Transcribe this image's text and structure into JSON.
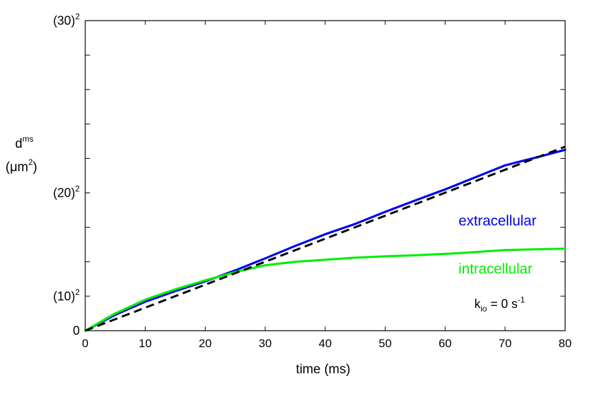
{
  "chart_data": {
    "type": "line",
    "xlabel": "time (ms)",
    "ylabel_main": "d",
    "ylabel_sup": "ms",
    "ylabel_unit_open": "(",
    "ylabel_unit": "μm",
    "ylabel_unit_sup": "2",
    "ylabel_unit_close": ")",
    "xlim": [
      0,
      80
    ],
    "ylim": [
      0,
      900
    ],
    "x_ticks": [
      0,
      10,
      20,
      30,
      40,
      50,
      60,
      70,
      80
    ],
    "x_tick_labels": [
      "0",
      "10",
      "20",
      "30",
      "40",
      "50",
      "60",
      "70",
      "80"
    ],
    "y_ticks": [
      0,
      100,
      200,
      300,
      400,
      500,
      600,
      700,
      800,
      900
    ],
    "y_tick_labels": [
      {
        "value": 0,
        "base": "0",
        "sup": ""
      },
      {
        "value": 100,
        "base": "(10)",
        "sup": "2"
      },
      {
        "value": 400,
        "base": "(20)",
        "sup": "2"
      },
      {
        "value": 900,
        "base": "(30)",
        "sup": "2"
      }
    ],
    "grid": false,
    "annotation": {
      "base": "k",
      "sub": "io",
      "mid": " = 0 s",
      "sup": "-1"
    },
    "series": [
      {
        "name": "",
        "color": "#000000",
        "style": "dashed",
        "x": [
          0,
          80
        ],
        "y": [
          0,
          534
        ]
      },
      {
        "name": "extracellular",
        "color": "#0000ee",
        "style": "solid",
        "x": [
          0,
          5,
          10,
          15,
          20,
          25,
          30,
          35,
          40,
          45,
          50,
          55,
          60,
          65,
          70,
          75,
          80
        ],
        "y": [
          0,
          46,
          84,
          115,
          143,
          175,
          210,
          246,
          280,
          310,
          345,
          378,
          410,
          445,
          480,
          502,
          525
        ]
      },
      {
        "name": "intracellular",
        "color": "#00ee00",
        "style": "solid",
        "x": [
          0,
          5,
          10,
          15,
          20,
          25,
          30,
          35,
          40,
          45,
          50,
          55,
          60,
          65,
          70,
          75,
          80
        ],
        "y": [
          0,
          50,
          90,
          120,
          146,
          170,
          190,
          200,
          206,
          212,
          216,
          219,
          223,
          228,
          234,
          236,
          238
        ]
      }
    ]
  }
}
